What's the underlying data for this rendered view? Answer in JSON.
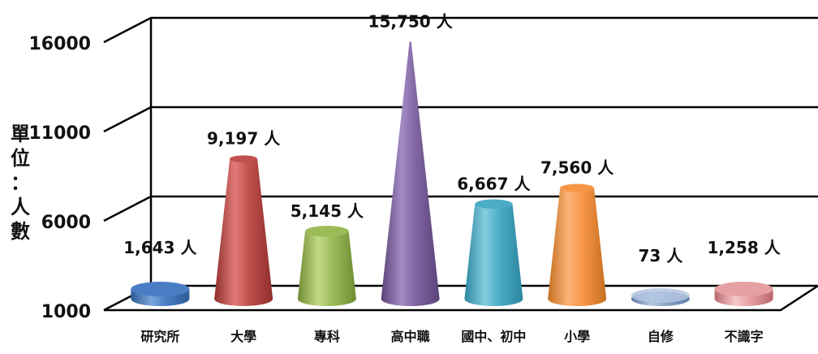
{
  "chart_data": {
    "type": "bar",
    "title": "",
    "xlabel": "",
    "ylabel": "單位：人數",
    "ylabel_chars": [
      "單",
      "位",
      "：",
      "人",
      "數"
    ],
    "ylim": [
      1000,
      16000
    ],
    "yticks": [
      "1000",
      "6000",
      "11000",
      "16000"
    ],
    "ytick_values": [
      1000,
      6000,
      11000,
      16000
    ],
    "grid": true,
    "categories": [
      "研究所",
      "大學",
      "專科",
      "高中職",
      "國中、初中",
      "小學",
      "自修",
      "不識字"
    ],
    "values": [
      1643,
      9197,
      5145,
      15750,
      6667,
      7560,
      73,
      1258
    ],
    "data_labels": [
      "1,643 人",
      "9,197 人",
      "5,145 人",
      "15,750 人",
      "6,667 人",
      "7,560 人",
      "73 人",
      "1,258 人"
    ],
    "colors": [
      "#4a7ec4",
      "#c0504d",
      "#9bbb59",
      "#8064a2",
      "#4bacc6",
      "#f79646",
      "#8aa2c8",
      "#e6a0a4"
    ],
    "colors_dark": [
      "#2d5b96",
      "#8e2f2c",
      "#6f8c32",
      "#5a4378",
      "#2b86a0",
      "#c56f21",
      "#5f7aa6",
      "#b9676c"
    ],
    "colors_light": [
      "#7aa5dc",
      "#e07b78",
      "#c2da86",
      "#a48cc4",
      "#86cde0",
      "#fbb47a",
      "#b3c6e0",
      "#f6c8ca"
    ]
  }
}
